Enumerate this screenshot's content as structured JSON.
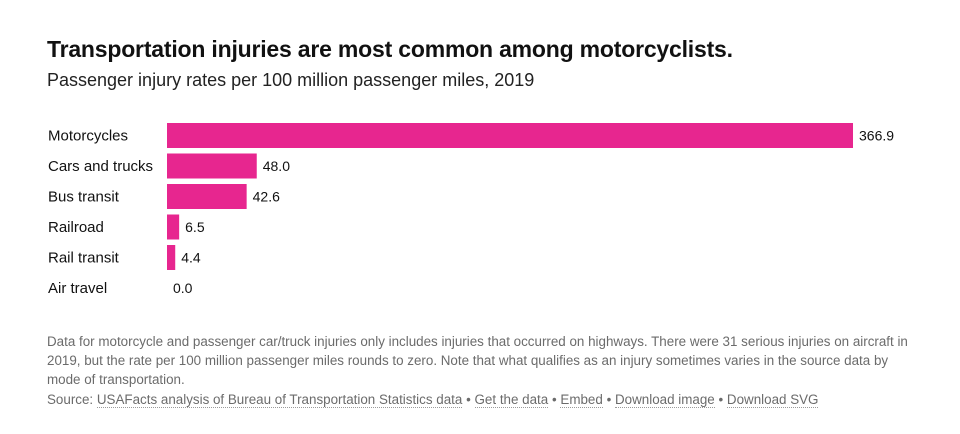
{
  "header": {
    "title": "Transportation injuries are most common among motorcyclists.",
    "subtitle": "Passenger injury rates per 100 million passenger miles, 2019"
  },
  "chart_data": {
    "type": "bar",
    "orientation": "horizontal",
    "title": "Transportation injuries are most common among motorcyclists.",
    "subtitle": "Passenger injury rates per 100 million passenger miles, 2019",
    "categories": [
      "Motorcycles",
      "Cars and trucks",
      "Bus transit",
      "Railroad",
      "Rail transit",
      "Air travel"
    ],
    "values": [
      366.9,
      48.0,
      42.6,
      6.5,
      4.4,
      0.0
    ],
    "value_labels": [
      "366.9",
      "48.0",
      "42.6",
      "6.5",
      "4.4",
      "0.0"
    ],
    "xlabel": "",
    "ylabel": "",
    "xlim": [
      0,
      366.9
    ],
    "bar_color": "#e7268f",
    "grid": false
  },
  "footer": {
    "note": "Data for motorcycle and passenger car/truck injuries only includes injuries that occurred on highways. There were 31 serious injuries on aircraft in 2019, but the rate per 100 million passenger miles rounds to zero. Note that what qualifies as an injury sometimes varies in the source data by mode of transportation.",
    "source_prefix": "Source:",
    "source_link": "USAFacts analysis of Bureau of Transportation Statistics data",
    "separator": "•",
    "links": [
      "Get the data",
      "Embed",
      "Download image",
      "Download SVG"
    ]
  }
}
